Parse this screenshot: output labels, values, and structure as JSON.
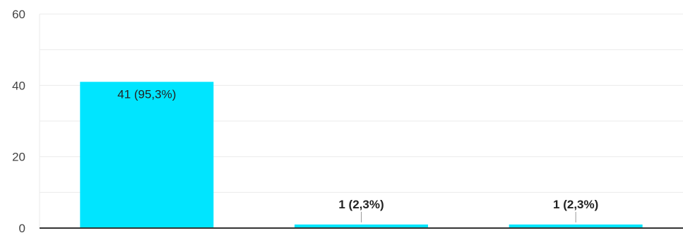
{
  "chart_data": {
    "type": "bar",
    "categories": [
      "",
      "",
      ""
    ],
    "values": [
      41,
      1,
      1
    ],
    "data_labels": [
      "41 (95,3%)",
      "1 (2,3%)",
      "1 (2,3%)"
    ],
    "title": "",
    "xlabel": "",
    "ylabel": "",
    "ylim": [
      0,
      60
    ],
    "yticks": [
      0,
      20,
      40,
      60
    ],
    "grid": true,
    "legend": "none",
    "colors": {
      "bar": "#00e5ff",
      "grid": "#ebebeb",
      "axis": "#333333",
      "leader": "#999999"
    }
  }
}
